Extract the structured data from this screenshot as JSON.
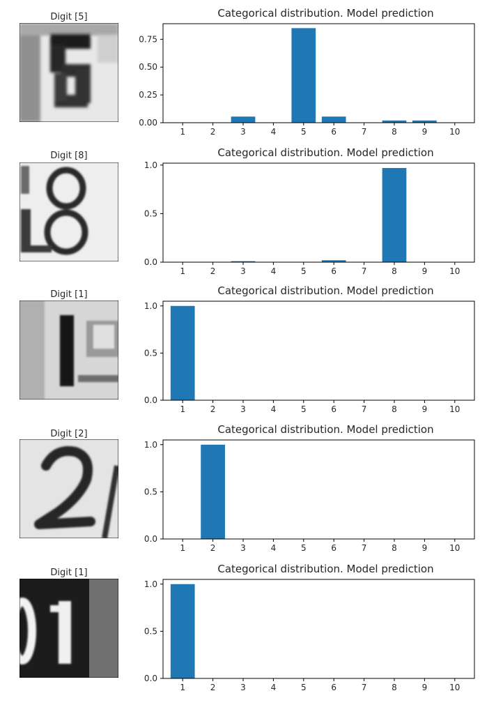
{
  "chart_data": [
    {
      "type": "bar",
      "image_title": "Digit [5]",
      "title": "Categorical distribution. Model prediction",
      "categories": [
        "1",
        "2",
        "3",
        "4",
        "5",
        "6",
        "7",
        "8",
        "9",
        "10"
      ],
      "values": [
        0.0,
        0.0,
        0.055,
        0.0,
        0.85,
        0.055,
        0.0,
        0.02,
        0.02,
        0.0
      ],
      "ylim": [
        0,
        0.89
      ],
      "yticks": [
        "0.00",
        "0.25",
        "0.50",
        "0.75"
      ],
      "ytick_values": [
        0,
        0.25,
        0.5,
        0.75
      ]
    },
    {
      "type": "bar",
      "image_title": "Digit [8]",
      "title": "Categorical distribution. Model prediction",
      "categories": [
        "1",
        "2",
        "3",
        "4",
        "5",
        "6",
        "7",
        "8",
        "9",
        "10"
      ],
      "values": [
        0.0,
        0.0,
        0.01,
        0.0,
        0.0,
        0.02,
        0.0,
        0.97,
        0.0,
        0.0
      ],
      "ylim": [
        0,
        1.02
      ],
      "yticks": [
        "0.0",
        "0.5",
        "1.0"
      ],
      "ytick_values": [
        0,
        0.5,
        1.0
      ]
    },
    {
      "type": "bar",
      "image_title": "Digit [1]",
      "title": "Categorical distribution. Model prediction",
      "categories": [
        "1",
        "2",
        "3",
        "4",
        "5",
        "6",
        "7",
        "8",
        "9",
        "10"
      ],
      "values": [
        1.0,
        0,
        0,
        0,
        0,
        0,
        0,
        0,
        0,
        0
      ],
      "ylim": [
        0,
        1.05
      ],
      "yticks": [
        "0.0",
        "0.5",
        "1.0"
      ],
      "ytick_values": [
        0,
        0.5,
        1.0
      ]
    },
    {
      "type": "bar",
      "image_title": "Digit [2]",
      "title": "Categorical distribution. Model prediction",
      "categories": [
        "1",
        "2",
        "3",
        "4",
        "5",
        "6",
        "7",
        "8",
        "9",
        "10"
      ],
      "values": [
        0,
        1.0,
        0,
        0,
        0,
        0,
        0,
        0,
        0,
        0
      ],
      "ylim": [
        0,
        1.05
      ],
      "yticks": [
        "0.0",
        "0.5",
        "1.0"
      ],
      "ytick_values": [
        0,
        0.5,
        1.0
      ]
    },
    {
      "type": "bar",
      "image_title": "Digit [1]",
      "title": "Categorical distribution. Model prediction",
      "categories": [
        "1",
        "2",
        "3",
        "4",
        "5",
        "6",
        "7",
        "8",
        "9",
        "10"
      ],
      "values": [
        1.0,
        0,
        0,
        0,
        0,
        0,
        0,
        0,
        0,
        0
      ],
      "ylim": [
        0,
        1.05
      ],
      "yticks": [
        "0.0",
        "0.5",
        "1.0"
      ],
      "ytick_values": [
        0,
        0.5,
        1.0
      ]
    }
  ],
  "colors": {
    "bar": "#1f77b4",
    "axis": "#000000",
    "text": "#262626"
  }
}
